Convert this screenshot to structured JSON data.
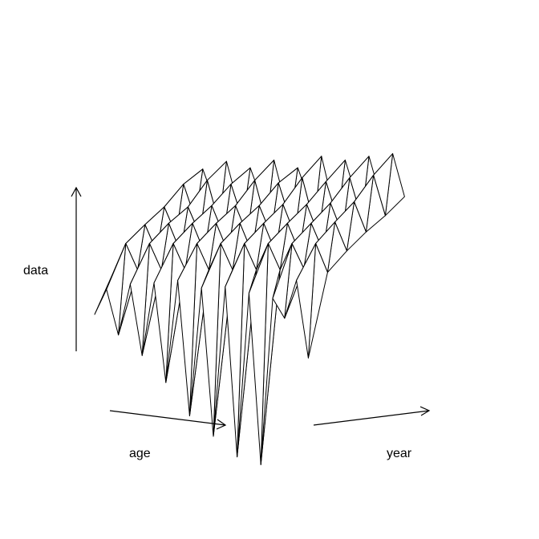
{
  "chart_data": {
    "type": "surface",
    "title": "",
    "xlabel": "age",
    "ylabel": "year",
    "zlabel": "data",
    "n_age": 19,
    "n_year": 6,
    "surface": [
      [
        0.22,
        0.55,
        0.3,
        0.62,
        0.28,
        0.58,
        0.33,
        0.65,
        0.3,
        0.6,
        0.35,
        0.7,
        0.32,
        0.68,
        0.38,
        0.72,
        0.4,
        0.75,
        0.42
      ],
      [
        0.3,
        0.62,
        0.35,
        0.66,
        0.33,
        0.64,
        0.36,
        0.68,
        0.34,
        0.67,
        0.38,
        0.72,
        0.37,
        0.7,
        0.41,
        0.74,
        0.43,
        0.77,
        0.46
      ],
      [
        0.4,
        0.63,
        0.42,
        0.64,
        0.43,
        0.66,
        0.44,
        0.67,
        0.45,
        0.68,
        0.46,
        0.7,
        0.47,
        0.71,
        0.48,
        0.73,
        0.5,
        0.75,
        0.52
      ],
      [
        0.45,
        0.68,
        0.47,
        0.7,
        0.48,
        0.71,
        0.49,
        0.72,
        0.5,
        0.73,
        0.51,
        0.74,
        0.52,
        0.75,
        0.53,
        0.76,
        0.55,
        0.78,
        0.56
      ],
      [
        0.5,
        0.72,
        0.52,
        0.73,
        0.53,
        0.74,
        0.54,
        0.75,
        0.55,
        0.76,
        0.56,
        0.77,
        0.57,
        0.78,
        0.58,
        0.79,
        0.6,
        0.8,
        0.58
      ],
      [
        0.35,
        0.55,
        0.2,
        0.6,
        0.05,
        0.62,
        -0.15,
        0.65,
        -0.4,
        0.6,
        -0.55,
        0.62,
        -0.7,
        0.58,
        -0.75,
        0.55,
        0.4,
        0.7,
        0.1
      ]
    ],
    "grid": false,
    "legend": ""
  }
}
